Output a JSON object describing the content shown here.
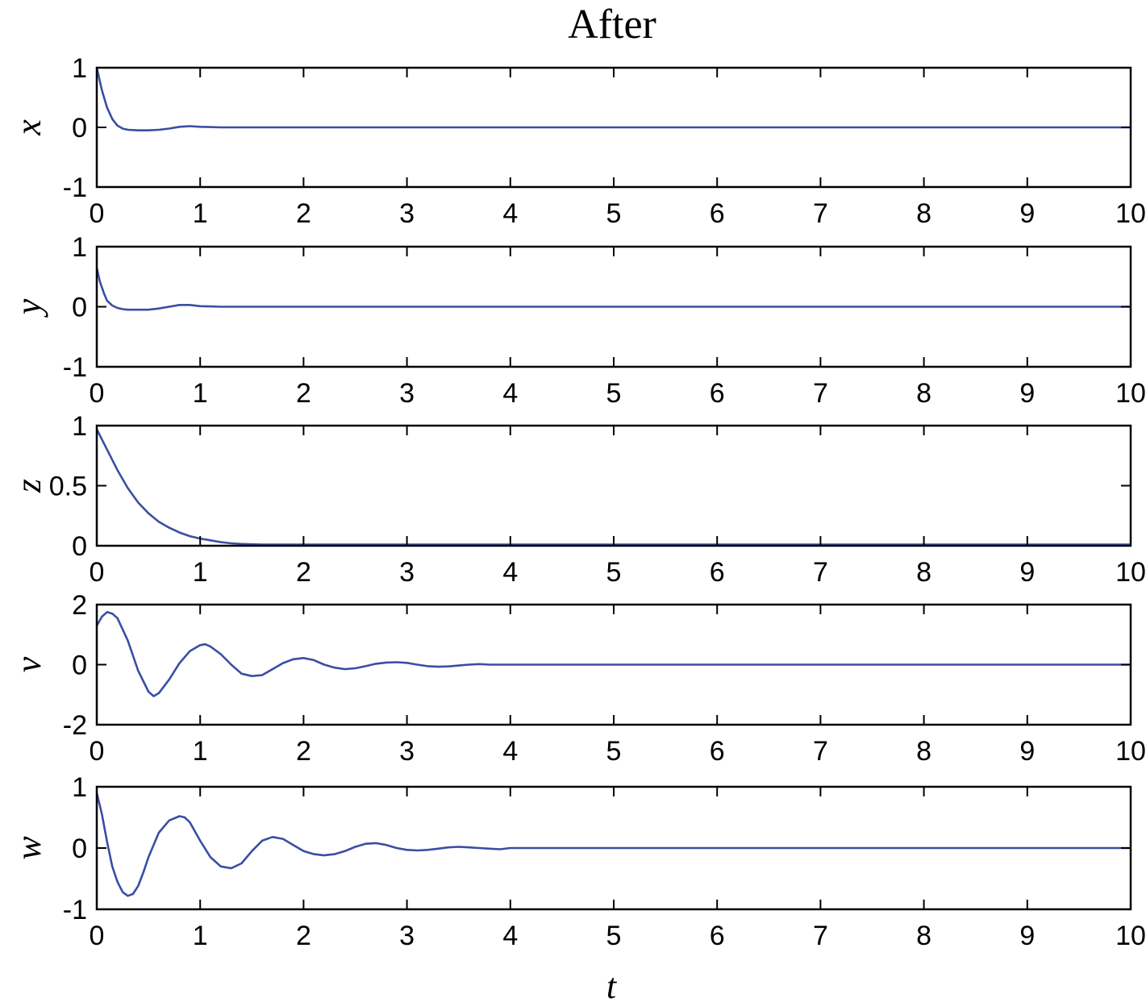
{
  "chart_data": {
    "type": "line",
    "title": "After",
    "xlabel": "t",
    "subplots": [
      {
        "ylabel": "x",
        "xlim": [
          0,
          10
        ],
        "ylim": [
          -1,
          1
        ],
        "xticks": [
          "0",
          "1",
          "2",
          "3",
          "4",
          "5",
          "6",
          "7",
          "8",
          "9",
          "10"
        ],
        "yticks": [
          "1",
          "0",
          "-1"
        ],
        "ytick_values": [
          1,
          0,
          -1
        ],
        "series": [
          {
            "x": [
              0,
              0.05,
              0.1,
              0.15,
              0.2,
              0.25,
              0.3,
              0.4,
              0.5,
              0.6,
              0.7,
              0.8,
              0.9,
              1.0,
              1.2,
              1.5,
              2,
              10
            ],
            "y": [
              1,
              0.62,
              0.33,
              0.14,
              0.03,
              -0.02,
              -0.04,
              -0.05,
              -0.05,
              -0.04,
              -0.02,
              0.01,
              0.02,
              0.01,
              0,
              0,
              0,
              0
            ]
          }
        ]
      },
      {
        "ylabel": "y",
        "xlim": [
          0,
          10
        ],
        "ylim": [
          -1,
          1
        ],
        "xticks": [
          "0",
          "1",
          "2",
          "3",
          "4",
          "5",
          "6",
          "7",
          "8",
          "9",
          "10"
        ],
        "yticks": [
          "1",
          "0",
          "-1"
        ],
        "ytick_values": [
          1,
          0,
          -1
        ],
        "series": [
          {
            "x": [
              0,
              0.03,
              0.07,
              0.1,
              0.15,
              0.2,
              0.25,
              0.3,
              0.4,
              0.5,
              0.6,
              0.7,
              0.8,
              0.9,
              1.0,
              1.2,
              1.5,
              2,
              10
            ],
            "y": [
              0.65,
              0.42,
              0.22,
              0.1,
              0.02,
              -0.02,
              -0.04,
              -0.05,
              -0.05,
              -0.05,
              -0.03,
              0,
              0.03,
              0.03,
              0.01,
              0,
              0,
              0,
              0
            ]
          }
        ]
      },
      {
        "ylabel": "z",
        "xlim": [
          0,
          10
        ],
        "ylim": [
          0,
          1
        ],
        "xticks": [
          "0",
          "1",
          "2",
          "3",
          "4",
          "5",
          "6",
          "7",
          "8",
          "9",
          "10"
        ],
        "yticks": [
          "1",
          "0.5",
          "0"
        ],
        "ytick_values": [
          1,
          0.5,
          0
        ],
        "series": [
          {
            "x": [
              0,
              0.1,
              0.2,
              0.3,
              0.4,
              0.5,
              0.6,
              0.7,
              0.8,
              0.9,
              1.0,
              1.1,
              1.2,
              1.3,
              1.4,
              1.6,
              2,
              10
            ],
            "y": [
              0.97,
              0.8,
              0.63,
              0.48,
              0.36,
              0.27,
              0.2,
              0.15,
              0.11,
              0.08,
              0.06,
              0.045,
              0.03,
              0.02,
              0.015,
              0.01,
              0.01,
              0.01
            ]
          }
        ]
      },
      {
        "ylabel": "v",
        "xlim": [
          0,
          10
        ],
        "ylim": [
          -2,
          2
        ],
        "xticks": [
          "0",
          "1",
          "2",
          "3",
          "4",
          "5",
          "6",
          "7",
          "8",
          "9",
          "10"
        ],
        "yticks": [
          "2",
          "0",
          "-2"
        ],
        "ytick_values": [
          2,
          0,
          -2
        ],
        "series": [
          {
            "x": [
              0,
              0.05,
              0.1,
              0.15,
              0.2,
              0.3,
              0.4,
              0.5,
              0.55,
              0.6,
              0.7,
              0.8,
              0.9,
              1.0,
              1.05,
              1.1,
              1.2,
              1.3,
              1.4,
              1.5,
              1.6,
              1.7,
              1.8,
              1.9,
              2.0,
              2.1,
              2.2,
              2.3,
              2.4,
              2.5,
              2.6,
              2.7,
              2.8,
              2.9,
              3.0,
              3.1,
              3.2,
              3.3,
              3.4,
              3.5,
              3.6,
              3.7,
              3.8,
              4.0,
              10
            ],
            "y": [
              1.3,
              1.6,
              1.75,
              1.7,
              1.55,
              0.8,
              -0.2,
              -0.9,
              -1.05,
              -0.95,
              -0.5,
              0.05,
              0.45,
              0.65,
              0.68,
              0.6,
              0.35,
              0,
              -0.3,
              -0.38,
              -0.35,
              -0.15,
              0.05,
              0.18,
              0.22,
              0.15,
              0,
              -0.1,
              -0.15,
              -0.12,
              -0.05,
              0.03,
              0.07,
              0.08,
              0.06,
              0,
              -0.05,
              -0.07,
              -0.06,
              -0.03,
              0,
              0.02,
              0,
              0,
              0
            ]
          }
        ]
      },
      {
        "ylabel": "w",
        "xlim": [
          0,
          10
        ],
        "ylim": [
          -1,
          1
        ],
        "xticks": [
          "0",
          "1",
          "2",
          "3",
          "4",
          "5",
          "6",
          "7",
          "8",
          "9",
          "10"
        ],
        "yticks": [
          "1",
          "0",
          "-1"
        ],
        "ytick_values": [
          1,
          0,
          -1
        ],
        "series": [
          {
            "x": [
              0,
              0.05,
              0.1,
              0.15,
              0.2,
              0.25,
              0.3,
              0.35,
              0.4,
              0.45,
              0.5,
              0.6,
              0.7,
              0.8,
              0.85,
              0.9,
              1.0,
              1.1,
              1.2,
              1.3,
              1.4,
              1.5,
              1.6,
              1.7,
              1.8,
              1.9,
              2.0,
              2.1,
              2.2,
              2.3,
              2.4,
              2.5,
              2.6,
              2.7,
              2.8,
              2.9,
              3.0,
              3.1,
              3.2,
              3.3,
              3.4,
              3.5,
              3.6,
              3.7,
              3.8,
              3.9,
              4.0,
              10
            ],
            "y": [
              0.9,
              0.55,
              0.1,
              -0.3,
              -0.55,
              -0.72,
              -0.78,
              -0.75,
              -0.62,
              -0.4,
              -0.15,
              0.25,
              0.45,
              0.52,
              0.5,
              0.42,
              0.12,
              -0.15,
              -0.3,
              -0.33,
              -0.25,
              -0.05,
              0.12,
              0.18,
              0.15,
              0.05,
              -0.05,
              -0.1,
              -0.12,
              -0.1,
              -0.05,
              0.02,
              0.07,
              0.08,
              0.05,
              0,
              -0.03,
              -0.04,
              -0.03,
              -0.01,
              0.01,
              0.02,
              0.01,
              0,
              -0.01,
              -0.02,
              0,
              0
            ]
          }
        ]
      }
    ]
  }
}
